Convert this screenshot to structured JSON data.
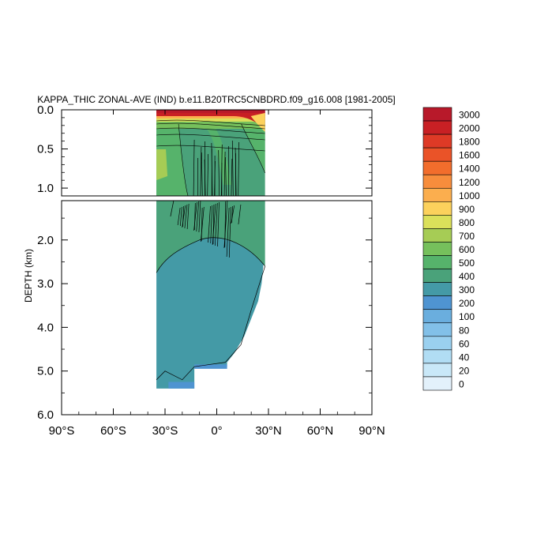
{
  "chart_data": {
    "type": "heatmap",
    "title": "KAPPA_THIC ZONAL-AVE (IND) b.e11.B20TRC5CNBDRD.f09_g16.008 [1981-2005]",
    "ylabel": "DEPTH (km)",
    "xlabel": "",
    "x_ticks": [
      "90°S",
      "60°S",
      "30°S",
      "0°",
      "30°N",
      "60°N",
      "90°N"
    ],
    "x_range": [
      -90,
      90
    ],
    "upper_panel": {
      "y_range": [
        0,
        1.1
      ],
      "y_ticks": [
        "0.0",
        "0.5",
        "1.0"
      ]
    },
    "lower_panel": {
      "y_range": [
        1.1,
        6.0
      ],
      "y_ticks": [
        "2.0",
        "3.0",
        "4.0",
        "5.0",
        "6.0"
      ]
    },
    "legend": {
      "placement": "right",
      "levels": [
        "0",
        "20",
        "40",
        "60",
        "80",
        "100",
        "200",
        "300",
        "400",
        "500",
        "600",
        "700",
        "800",
        "900",
        "1000",
        "1200",
        "1400",
        "1600",
        "1800",
        "2000",
        "3000"
      ],
      "colors": [
        "#e3f1fb",
        "#c9e8f8",
        "#b1ddf4",
        "#9ad0ef",
        "#82c0e8",
        "#6aaede",
        "#4f94d1",
        "#449aa6",
        "#4aa27a",
        "#56b36b",
        "#76c05c",
        "#a6cc55",
        "#dbe05a",
        "#fcd15c",
        "#fbae4e",
        "#f78d3c",
        "#f26d2c",
        "#ea5328",
        "#de3a26",
        "#c82024",
        "#b8192a"
      ]
    },
    "data_extent": {
      "lat_min": -35,
      "lat_max": 28,
      "max_depth_km": 5.4
    },
    "approx_field": [
      {
        "depth_range_km": [
          0.0,
          0.05
        ],
        "value": "3000"
      },
      {
        "depth_range_km": [
          0.05,
          0.2
        ],
        "value": "800-2000"
      },
      {
        "depth_range_km": [
          0.2,
          0.7
        ],
        "value": "500-700"
      },
      {
        "depth_range_km": [
          0.7,
          2.5
        ],
        "value": "400"
      },
      {
        "depth_range_km": [
          2.5,
          5.4
        ],
        "value": "300"
      },
      {
        "depth_range_km": [
          5.2,
          5.4
        ],
        "value": "200"
      }
    ]
  }
}
